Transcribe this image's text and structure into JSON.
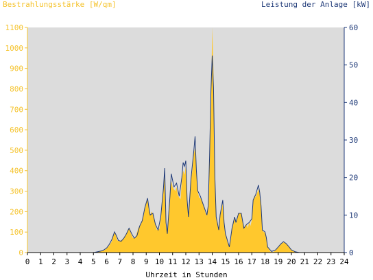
{
  "chart_data": {
    "type": "area",
    "title_left": "Bestrahlungsstärke [W/qm]",
    "title_right": "Leistung der Anlage [kW]",
    "xlabel": "Uhrzeit in Stunden",
    "xlim": [
      0,
      24
    ],
    "x_ticks": [
      "0",
      "1",
      "2",
      "3",
      "4",
      "5",
      "6",
      "7",
      "8",
      "9",
      "10",
      "11",
      "12",
      "13",
      "14",
      "15",
      "16",
      "17",
      "18",
      "19",
      "20",
      "21",
      "22",
      "23",
      "24"
    ],
    "ylim_left": [
      0,
      1100
    ],
    "y_ticks_left": [
      "0",
      "100",
      "200",
      "300",
      "400",
      "500",
      "600",
      "700",
      "800",
      "900",
      "1000",
      "1100"
    ],
    "ylim_right": [
      0,
      60
    ],
    "y_ticks_right": [
      "0",
      "10",
      "20",
      "30",
      "40",
      "50",
      "60"
    ],
    "grid": false,
    "colors": {
      "plot_bg": "#dcdcdc",
      "irradiance": "#ffc82d",
      "power": "#1f3a78",
      "left_axis": "#f5c32c",
      "right_axis": "#1f3a78"
    },
    "series": [
      {
        "name": "Bestrahlungsstärke",
        "axis": "left",
        "points": [
          [
            5.0,
            0
          ],
          [
            5.2,
            3
          ],
          [
            5.5,
            6
          ],
          [
            5.8,
            10
          ],
          [
            6.0,
            20
          ],
          [
            6.2,
            35
          ],
          [
            6.4,
            55
          ],
          [
            6.5,
            80
          ],
          [
            6.6,
            100
          ],
          [
            6.7,
            85
          ],
          [
            6.8,
            60
          ],
          [
            7.0,
            55
          ],
          [
            7.2,
            65
          ],
          [
            7.4,
            80
          ],
          [
            7.6,
            110
          ],
          [
            7.7,
            120
          ],
          [
            7.8,
            100
          ],
          [
            8.0,
            70
          ],
          [
            8.2,
            75
          ],
          [
            8.4,
            120
          ],
          [
            8.6,
            140
          ],
          [
            8.8,
            180
          ],
          [
            8.9,
            210
          ],
          [
            9.0,
            240
          ],
          [
            9.1,
            260
          ],
          [
            9.2,
            210
          ],
          [
            9.3,
            180
          ],
          [
            9.4,
            200
          ],
          [
            9.5,
            190
          ],
          [
            9.6,
            160
          ],
          [
            9.7,
            140
          ],
          [
            9.8,
            110
          ],
          [
            10.0,
            115
          ],
          [
            10.1,
            170
          ],
          [
            10.2,
            230
          ],
          [
            10.3,
            300
          ],
          [
            10.4,
            380
          ],
          [
            10.5,
            140
          ],
          [
            10.6,
            90
          ],
          [
            10.8,
            270
          ],
          [
            10.9,
            350
          ],
          [
            11.0,
            320
          ],
          [
            11.2,
            300
          ],
          [
            11.3,
            320
          ],
          [
            11.4,
            280
          ],
          [
            11.6,
            260
          ],
          [
            11.7,
            350
          ],
          [
            11.8,
            400
          ],
          [
            11.9,
            380
          ],
          [
            12.0,
            420
          ],
          [
            12.1,
            250
          ],
          [
            12.2,
            170
          ],
          [
            12.4,
            360
          ],
          [
            12.5,
            400
          ],
          [
            12.6,
            480
          ],
          [
            12.7,
            510
          ],
          [
            12.8,
            400
          ],
          [
            12.9,
            300
          ],
          [
            13.0,
            270
          ],
          [
            13.2,
            260
          ],
          [
            13.4,
            220
          ],
          [
            13.5,
            190
          ],
          [
            13.6,
            180
          ],
          [
            13.7,
            220
          ],
          [
            13.8,
            470
          ],
          [
            13.9,
            700
          ],
          [
            14.0,
            1100
          ],
          [
            14.1,
            880
          ],
          [
            14.2,
            360
          ],
          [
            14.3,
            170
          ],
          [
            14.4,
            140
          ],
          [
            14.5,
            110
          ],
          [
            14.6,
            180
          ],
          [
            14.7,
            210
          ],
          [
            14.8,
            240
          ],
          [
            14.9,
            150
          ],
          [
            15.0,
            90
          ],
          [
            15.2,
            40
          ],
          [
            15.3,
            30
          ],
          [
            15.4,
            60
          ],
          [
            15.5,
            120
          ],
          [
            15.6,
            155
          ],
          [
            15.7,
            170
          ],
          [
            15.8,
            140
          ],
          [
            15.9,
            170
          ],
          [
            16.0,
            190
          ],
          [
            16.1,
            195
          ],
          [
            16.2,
            190
          ],
          [
            16.3,
            150
          ],
          [
            16.4,
            120
          ],
          [
            16.5,
            130
          ],
          [
            16.6,
            140
          ],
          [
            16.7,
            120
          ],
          [
            16.8,
            150
          ],
          [
            16.9,
            130
          ],
          [
            17.0,
            160
          ],
          [
            17.1,
            250
          ],
          [
            17.2,
            280
          ],
          [
            17.3,
            270
          ],
          [
            17.4,
            290
          ],
          [
            17.5,
            310
          ],
          [
            17.6,
            280
          ],
          [
            17.7,
            230
          ],
          [
            17.8,
            110
          ],
          [
            17.9,
            100
          ],
          [
            18.0,
            100
          ],
          [
            18.1,
            80
          ],
          [
            18.2,
            30
          ],
          [
            18.4,
            5
          ],
          [
            18.6,
            3
          ],
          [
            18.8,
            10
          ],
          [
            19.0,
            25
          ],
          [
            19.2,
            40
          ],
          [
            19.4,
            50
          ],
          [
            19.5,
            48
          ],
          [
            19.6,
            42
          ],
          [
            19.8,
            30
          ],
          [
            20.0,
            12
          ],
          [
            20.3,
            4
          ],
          [
            20.6,
            0
          ]
        ]
      },
      {
        "name": "Leistung der Anlage",
        "axis": "right",
        "points": [
          [
            5.0,
            0
          ],
          [
            5.3,
            0.2
          ],
          [
            5.7,
            0.5
          ],
          [
            6.0,
            1.2
          ],
          [
            6.2,
            2.2
          ],
          [
            6.4,
            3.5
          ],
          [
            6.6,
            5.5
          ],
          [
            6.7,
            4.8
          ],
          [
            6.9,
            3.2
          ],
          [
            7.1,
            3.0
          ],
          [
            7.3,
            3.8
          ],
          [
            7.5,
            5.0
          ],
          [
            7.7,
            6.5
          ],
          [
            7.9,
            5.0
          ],
          [
            8.1,
            3.8
          ],
          [
            8.3,
            4.5
          ],
          [
            8.5,
            7.0
          ],
          [
            8.7,
            8.5
          ],
          [
            8.9,
            12.0
          ],
          [
            9.1,
            14.5
          ],
          [
            9.2,
            12.0
          ],
          [
            9.3,
            10.0
          ],
          [
            9.5,
            10.5
          ],
          [
            9.7,
            7.5
          ],
          [
            9.9,
            6.0
          ],
          [
            10.1,
            9.5
          ],
          [
            10.3,
            17.0
          ],
          [
            10.4,
            22.5
          ],
          [
            10.5,
            8.0
          ],
          [
            10.6,
            5.0
          ],
          [
            10.8,
            15.0
          ],
          [
            10.9,
            21.0
          ],
          [
            11.1,
            17.5
          ],
          [
            11.3,
            18.5
          ],
          [
            11.5,
            15.0
          ],
          [
            11.7,
            20.0
          ],
          [
            11.8,
            24.0
          ],
          [
            11.9,
            23.0
          ],
          [
            12.0,
            24.5
          ],
          [
            12.1,
            14.0
          ],
          [
            12.2,
            9.5
          ],
          [
            12.4,
            20.0
          ],
          [
            12.6,
            27.0
          ],
          [
            12.7,
            31.0
          ],
          [
            12.8,
            22.0
          ],
          [
            12.9,
            16.5
          ],
          [
            13.1,
            15.0
          ],
          [
            13.3,
            13.0
          ],
          [
            13.5,
            11.0
          ],
          [
            13.6,
            10.0
          ],
          [
            13.7,
            12.5
          ],
          [
            13.8,
            26.0
          ],
          [
            13.9,
            43.0
          ],
          [
            14.0,
            52.5
          ],
          [
            14.1,
            44.0
          ],
          [
            14.2,
            20.0
          ],
          [
            14.3,
            9.5
          ],
          [
            14.5,
            6.0
          ],
          [
            14.6,
            10.0
          ],
          [
            14.8,
            14.0
          ],
          [
            14.9,
            8.0
          ],
          [
            15.0,
            5.0
          ],
          [
            15.3,
            1.5
          ],
          [
            15.5,
            6.5
          ],
          [
            15.7,
            9.5
          ],
          [
            15.8,
            8.0
          ],
          [
            16.0,
            10.5
          ],
          [
            16.2,
            10.5
          ],
          [
            16.4,
            6.5
          ],
          [
            16.6,
            7.5
          ],
          [
            16.8,
            8.0
          ],
          [
            17.0,
            9.0
          ],
          [
            17.1,
            14.0
          ],
          [
            17.3,
            15.5
          ],
          [
            17.5,
            18.0
          ],
          [
            17.6,
            16.0
          ],
          [
            17.7,
            12.5
          ],
          [
            17.8,
            6.0
          ],
          [
            18.0,
            5.5
          ],
          [
            18.1,
            4.0
          ],
          [
            18.2,
            1.5
          ],
          [
            18.5,
            0.3
          ],
          [
            18.8,
            0.7
          ],
          [
            19.0,
            1.5
          ],
          [
            19.2,
            2.3
          ],
          [
            19.4,
            2.9
          ],
          [
            19.6,
            2.4
          ],
          [
            19.8,
            1.6
          ],
          [
            20.0,
            0.7
          ],
          [
            20.3,
            0.2
          ],
          [
            20.6,
            0
          ]
        ]
      }
    ]
  }
}
